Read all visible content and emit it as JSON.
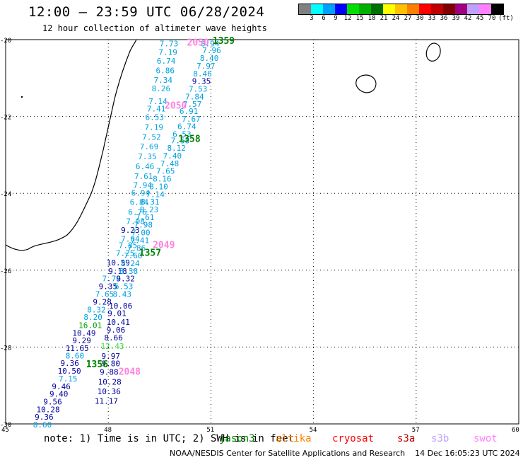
{
  "header": {
    "title": "12:00 – 23:59 UTC 06/28/2024",
    "subtitle": "12 hour collection of altimeter wave heights"
  },
  "legend": {
    "unit": "(ft)",
    "colors": [
      "#808080",
      "#00ffff",
      "#00a0ff",
      "#0000ff",
      "#00e000",
      "#00b000",
      "#007000",
      "#ffff00",
      "#ffc000",
      "#ff8000",
      "#ff0000",
      "#c00000",
      "#800000",
      "#a00080",
      "#c0a0ff",
      "#ff80ff",
      "#000000"
    ],
    "labels": [
      "3",
      "6",
      "9",
      "12",
      "15",
      "18",
      "21",
      "24",
      "27",
      "30",
      "33",
      "36",
      "39",
      "42",
      "45",
      "70"
    ]
  },
  "map": {
    "lon_range": [
      45,
      60
    ],
    "lat_range": [
      -30,
      -20
    ],
    "x_ticks": [
      "45",
      "48",
      "51",
      "54",
      "57",
      "60"
    ],
    "y_ticks": [
      "-20",
      "-22",
      "-24",
      "-26",
      "-28",
      "-30"
    ],
    "colors": {
      "lightblue": "#00a0e0",
      "navy": "#0000a0",
      "green": "#00a000",
      "lightgreen": "#40e040",
      "magenta": "#ff80e0",
      "darkgreen": "#008000"
    },
    "track_b": [
      {
        "lon": 49.5,
        "lat": -20.1,
        "text": "7.73",
        "c": "lightblue"
      },
      {
        "lon": 49.47,
        "lat": -20.32,
        "text": "7.19",
        "c": "lightblue"
      },
      {
        "lon": 49.42,
        "lat": -20.55,
        "text": "6.74",
        "c": "lightblue"
      },
      {
        "lon": 49.39,
        "lat": -20.8,
        "text": "6.86",
        "c": "lightblue"
      },
      {
        "lon": 49.33,
        "lat": -21.05,
        "text": "7.34",
        "c": "lightblue"
      },
      {
        "lon": 49.27,
        "lat": -21.27,
        "text": "8.26",
        "c": "lightblue"
      },
      {
        "lon": 49.18,
        "lat": -21.6,
        "text": "7.14",
        "c": "lightblue"
      },
      {
        "lon": 49.13,
        "lat": -21.8,
        "text": "7.41",
        "c": "lightblue"
      },
      {
        "lon": 49.08,
        "lat": -22.02,
        "text": "6.53",
        "c": "lightblue"
      },
      {
        "lon": 49.06,
        "lat": -22.27,
        "text": "7.19",
        "c": "lightblue"
      },
      {
        "lon": 48.99,
        "lat": -22.53,
        "text": "7.52",
        "c": "lightblue"
      },
      {
        "lon": 48.92,
        "lat": -22.78,
        "text": "7.69",
        "c": "lightblue"
      },
      {
        "lon": 48.87,
        "lat": -23.04,
        "text": "7.35",
        "c": "lightblue"
      },
      {
        "lon": 48.8,
        "lat": -23.3,
        "text": "6.46",
        "c": "lightblue"
      },
      {
        "lon": 48.76,
        "lat": -23.55,
        "text": "7.61",
        "c": "lightblue"
      },
      {
        "lon": 48.73,
        "lat": -23.78,
        "text": "7.94",
        "c": "lightblue"
      },
      {
        "lon": 48.67,
        "lat": -23.99,
        "text": "6.94",
        "c": "lightblue"
      },
      {
        "lon": 48.63,
        "lat": -24.23,
        "text": "6.84",
        "c": "lightblue"
      },
      {
        "lon": 48.58,
        "lat": -24.48,
        "text": "6.76",
        "c": "lightblue"
      },
      {
        "lon": 48.52,
        "lat": -24.72,
        "text": "7.08",
        "c": "lightblue"
      },
      {
        "lon": 48.37,
        "lat": -24.95,
        "text": "9.23",
        "c": "navy"
      },
      {
        "lon": 48.37,
        "lat": -25.18,
        "text": "7.64",
        "c": "lightblue"
      },
      {
        "lon": 48.3,
        "lat": -25.35,
        "text": "7.85",
        "c": "lightblue"
      },
      {
        "lon": 48.22,
        "lat": -25.55,
        "text": "7.25",
        "c": "lightblue"
      },
      {
        "lon": 47.95,
        "lat": -25.8,
        "text": "10.59",
        "c": "navy"
      },
      {
        "lon": 48.0,
        "lat": -26.02,
        "text": "9.18",
        "c": "navy"
      },
      {
        "lon": 47.82,
        "lat": -26.22,
        "text": "7.78",
        "c": "lightblue"
      },
      {
        "lon": 47.72,
        "lat": -26.42,
        "text": "9.35",
        "c": "navy"
      },
      {
        "lon": 47.62,
        "lat": -26.62,
        "text": "7.65",
        "c": "lightblue"
      },
      {
        "lon": 47.55,
        "lat": -26.82,
        "text": "9.28",
        "c": "navy"
      },
      {
        "lon": 47.38,
        "lat": -27.03,
        "text": "8.32",
        "c": "lightblue"
      },
      {
        "lon": 47.28,
        "lat": -27.22,
        "text": "8.20",
        "c": "lightblue"
      },
      {
        "lon": 47.13,
        "lat": -27.43,
        "text": "16.01",
        "c": "green"
      },
      {
        "lon": 46.95,
        "lat": -27.63,
        "text": "10.49",
        "c": "navy"
      },
      {
        "lon": 46.95,
        "lat": -27.83,
        "text": "9.29",
        "c": "navy"
      },
      {
        "lon": 46.75,
        "lat": -28.03,
        "text": "11.65",
        "c": "navy"
      },
      {
        "lon": 46.75,
        "lat": -28.22,
        "text": "8.60",
        "c": "lightblue"
      },
      {
        "lon": 46.6,
        "lat": -28.42,
        "text": "9.36",
        "c": "navy"
      },
      {
        "lon": 46.52,
        "lat": -28.62,
        "text": "10.50",
        "c": "navy"
      },
      {
        "lon": 46.55,
        "lat": -28.82,
        "text": "7.15",
        "c": "lightblue"
      },
      {
        "lon": 46.35,
        "lat": -29.02,
        "text": "9.46",
        "c": "navy"
      },
      {
        "lon": 46.28,
        "lat": -29.22,
        "text": "9.40",
        "c": "navy"
      },
      {
        "lon": 46.1,
        "lat": -29.42,
        "text": "9.56",
        "c": "navy"
      },
      {
        "lon": 45.9,
        "lat": -29.62,
        "text": "10.28",
        "c": "navy"
      },
      {
        "lon": 45.85,
        "lat": -29.82,
        "text": "9.36",
        "c": "navy"
      },
      {
        "lon": 45.8,
        "lat": -30.02,
        "text": "8.60",
        "c": "lightblue"
      }
    ],
    "track_a": [
      {
        "lon": 50.7,
        "lat": -20.1,
        "text": "8.94",
        "c": "lightblue"
      },
      {
        "lon": 50.75,
        "lat": -20.28,
        "text": "7.96",
        "c": "lightblue"
      },
      {
        "lon": 50.68,
        "lat": -20.48,
        "text": "8.40",
        "c": "lightblue"
      },
      {
        "lon": 50.58,
        "lat": -20.68,
        "text": "7.97",
        "c": "lightblue"
      },
      {
        "lon": 50.48,
        "lat": -20.88,
        "text": "8.46",
        "c": "lightblue"
      },
      {
        "lon": 50.45,
        "lat": -21.08,
        "text": "9.35",
        "c": "navy"
      },
      {
        "lon": 50.35,
        "lat": -21.28,
        "text": "7.53",
        "c": "lightblue"
      },
      {
        "lon": 50.25,
        "lat": -21.48,
        "text": "7.84",
        "c": "lightblue"
      },
      {
        "lon": 50.18,
        "lat": -21.68,
        "text": "7.57",
        "c": "lightblue"
      },
      {
        "lon": 50.08,
        "lat": -21.86,
        "text": "6.91",
        "c": "lightblue"
      },
      {
        "lon": 50.15,
        "lat": -22.06,
        "text": "7.67",
        "c": "lightblue"
      },
      {
        "lon": 50.02,
        "lat": -22.26,
        "text": "6.74",
        "c": "lightblue"
      },
      {
        "lon": 49.88,
        "lat": -22.46,
        "text": "6.53",
        "c": "lightblue"
      },
      {
        "lon": 49.83,
        "lat": -22.62,
        "text": "7.58",
        "c": "lightblue"
      },
      {
        "lon": 49.72,
        "lat": -22.82,
        "text": "8.12",
        "c": "lightblue"
      },
      {
        "lon": 49.6,
        "lat": -23.02,
        "text": "7.40",
        "c": "lightblue"
      },
      {
        "lon": 49.52,
        "lat": -23.22,
        "text": "7.48",
        "c": "lightblue"
      },
      {
        "lon": 49.4,
        "lat": -23.42,
        "text": "7.65",
        "c": "lightblue"
      },
      {
        "lon": 49.3,
        "lat": -23.62,
        "text": "8.16",
        "c": "lightblue"
      },
      {
        "lon": 49.2,
        "lat": -23.82,
        "text": "8.10",
        "c": "lightblue"
      },
      {
        "lon": 49.1,
        "lat": -24.02,
        "text": "7.14",
        "c": "lightblue"
      },
      {
        "lon": 48.95,
        "lat": -24.22,
        "text": "8.31",
        "c": "lightblue"
      },
      {
        "lon": 48.92,
        "lat": -24.42,
        "text": "8.23",
        "c": "lightblue"
      },
      {
        "lon": 48.8,
        "lat": -24.62,
        "text": "7.61",
        "c": "lightblue"
      },
      {
        "lon": 48.75,
        "lat": -24.82,
        "text": "7.98",
        "c": "lightblue"
      },
      {
        "lon": 48.68,
        "lat": -25.02,
        "text": "7.00",
        "c": "lightblue"
      },
      {
        "lon": 48.65,
        "lat": -25.22,
        "text": "7.41",
        "c": "lightblue"
      },
      {
        "lon": 48.55,
        "lat": -25.42,
        "text": "7.86",
        "c": "lightblue"
      },
      {
        "lon": 48.45,
        "lat": -25.62,
        "text": "7.60",
        "c": "lightblue"
      },
      {
        "lon": 48.37,
        "lat": -25.82,
        "text": "8.24",
        "c": "lightblue"
      },
      {
        "lon": 48.32,
        "lat": -26.02,
        "text": "8.38",
        "c": "lightblue"
      },
      {
        "lon": 48.23,
        "lat": -26.22,
        "text": "9.32",
        "c": "navy"
      },
      {
        "lon": 48.18,
        "lat": -26.42,
        "text": "6.53",
        "c": "lightblue"
      },
      {
        "lon": 48.13,
        "lat": -26.62,
        "text": "8.43",
        "c": "lightblue"
      },
      {
        "lon": 48.02,
        "lat": -26.92,
        "text": "10.06",
        "c": "navy"
      },
      {
        "lon": 47.98,
        "lat": -27.12,
        "text": "9.01",
        "c": "navy"
      },
      {
        "lon": 47.95,
        "lat": -27.35,
        "text": "10.41",
        "c": "navy"
      },
      {
        "lon": 47.95,
        "lat": -27.55,
        "text": "9.06",
        "c": "navy"
      },
      {
        "lon": 47.88,
        "lat": -27.75,
        "text": "8.66",
        "c": "navy"
      },
      {
        "lon": 47.78,
        "lat": -27.97,
        "text": "12.43",
        "c": "lightgreen"
      },
      {
        "lon": 47.8,
        "lat": -28.23,
        "text": "9.97",
        "c": "navy"
      },
      {
        "lon": 47.8,
        "lat": -28.43,
        "text": "9.80",
        "c": "navy"
      },
      {
        "lon": 47.75,
        "lat": -28.65,
        "text": "9.88",
        "c": "navy"
      },
      {
        "lon": 47.7,
        "lat": -28.9,
        "text": "10.28",
        "c": "navy"
      },
      {
        "lon": 47.68,
        "lat": -29.15,
        "text": "10.36",
        "c": "navy"
      },
      {
        "lon": 47.6,
        "lat": -29.4,
        "text": "11.17",
        "c": "navy"
      }
    ],
    "pass_labels": [
      {
        "lon": 51.05,
        "lat": -20.04,
        "text": "1359",
        "c": "darkgreen"
      },
      {
        "lon": 50.3,
        "lat": -20.08,
        "text": "2050",
        "c": "magenta"
      },
      {
        "lon": 49.65,
        "lat": -21.72,
        "text": "2050",
        "c": "magenta"
      },
      {
        "lon": 50.05,
        "lat": -22.59,
        "text": "1358",
        "c": "darkgreen"
      },
      {
        "lon": 49.3,
        "lat": -25.35,
        "text": "2049",
        "c": "magenta"
      },
      {
        "lon": 48.9,
        "lat": -25.55,
        "text": "1357",
        "c": "darkgreen"
      },
      {
        "lon": 47.35,
        "lat": -28.45,
        "text": "1356",
        "c": "darkgreen"
      },
      {
        "lon": 48.3,
        "lat": -28.65,
        "text": "2048",
        "c": "magenta"
      }
    ]
  },
  "footer": {
    "note": "note: 1) Time is in UTC; 2) SWH is in feet",
    "satellites": [
      {
        "name": "jason3",
        "color": "#008000"
      },
      {
        "name": "altika",
        "color": "#ff8000"
      },
      {
        "name": "cryosat",
        "color": "#ff0000"
      },
      {
        "name": "s3a",
        "color": "#c00000"
      },
      {
        "name": "s3b",
        "color": "#c0a0ff"
      },
      {
        "name": "swot",
        "color": "#ff80ff"
      }
    ],
    "credit": "NOAA/NESDIS Center for Satellite Applications and Research",
    "timestamp": "14 Dec 16:05:23 UTC 2024"
  }
}
